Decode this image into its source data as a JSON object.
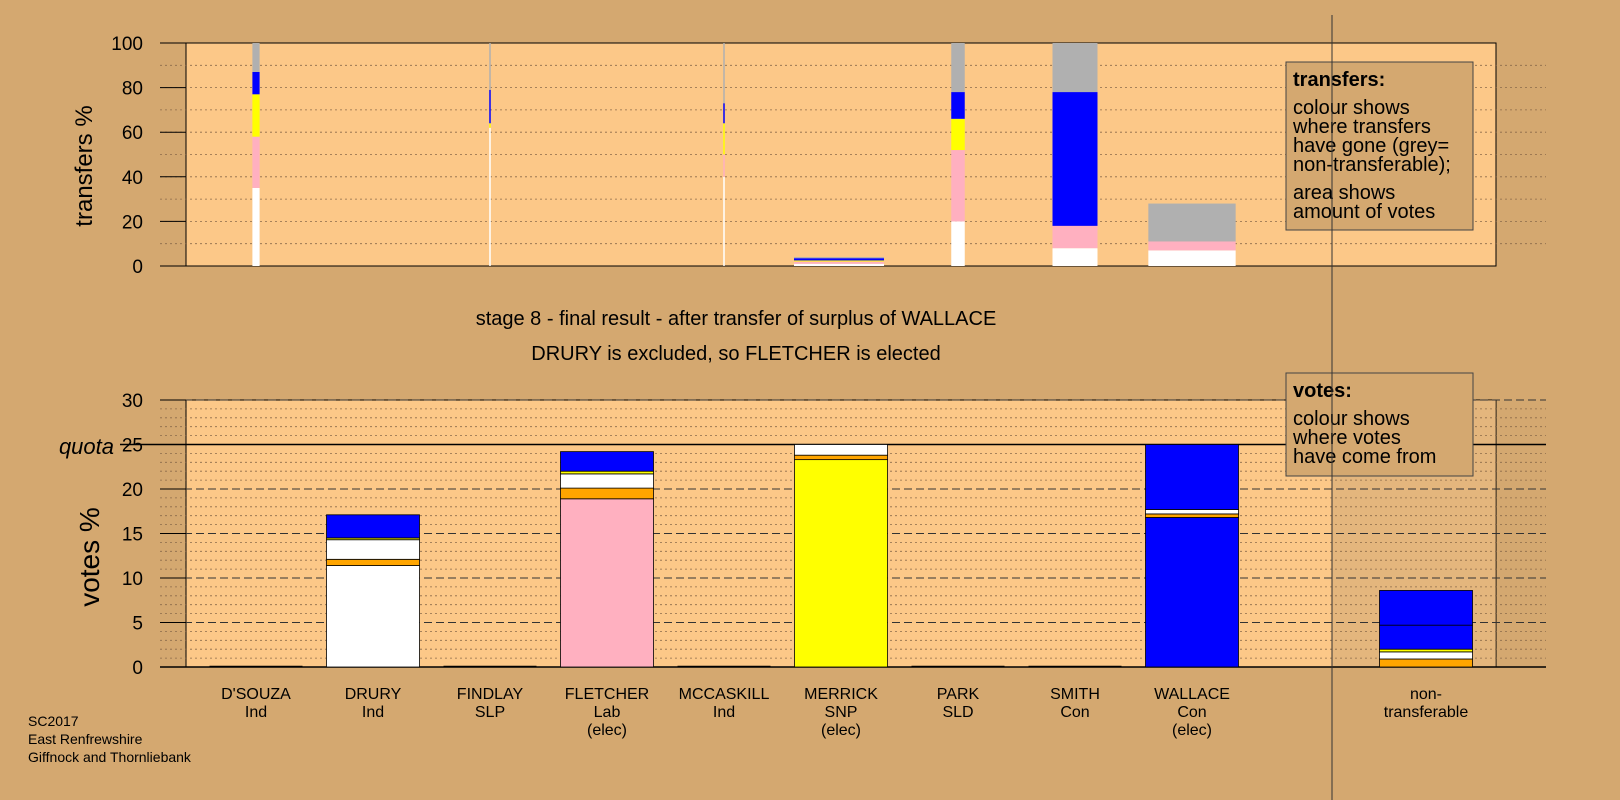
{
  "chart_data": [
    {
      "type": "bar",
      "id": "transfers",
      "ylabel": "transfers %",
      "ylim": [
        0,
        100
      ],
      "yticks": [
        0,
        20,
        40,
        60,
        80,
        100
      ],
      "note": "stacked bars, width proportional to amount of votes",
      "categories": [
        "D'SOUZA",
        "FINDLAY",
        "MCCASKILL",
        "MERRICK",
        "PARK",
        "SMITH",
        "WALLACE"
      ],
      "bars": [
        {
          "candidate": "D'SOUZA",
          "share_of_width": 0.08,
          "segments": [
            {
              "color": "#ffffff",
              "value": 35
            },
            {
              "color": "#ffb0c0",
              "value": 23
            },
            {
              "color": "#ffff00",
              "value": 19
            },
            {
              "color": "#0000ff",
              "value": 10
            },
            {
              "color": "#b0b0b0",
              "value": 13
            }
          ]
        },
        {
          "candidate": "FINDLAY",
          "share_of_width": 0.004,
          "segments": [
            {
              "color": "#ffffff",
              "value": 62
            },
            {
              "color": "#ffff00",
              "value": 2
            },
            {
              "color": "#0000ff",
              "value": 15
            },
            {
              "color": "#b0b0b0",
              "value": 21
            }
          ]
        },
        {
          "candidate": "MCCASKILL",
          "share_of_width": 0.008,
          "segments": [
            {
              "color": "#ffffff",
              "value": 40
            },
            {
              "color": "#ffb0c0",
              "value": 10
            },
            {
              "color": "#ffff00",
              "value": 14
            },
            {
              "color": "#0000ff",
              "value": 9
            },
            {
              "color": "#b0b0b0",
              "value": 27
            }
          ]
        },
        {
          "candidate": "MERRICK",
          "share_of_width": 1.0,
          "segments": [
            {
              "color": "#ffffff",
              "value": 1
            },
            {
              "color": "#ffb0c0",
              "value": 1
            },
            {
              "color": "#ffff00",
              "value": 0.5
            },
            {
              "color": "#0000ff",
              "value": 1
            },
            {
              "color": "#b0b0b0",
              "value": 0.5
            }
          ]
        },
        {
          "candidate": "PARK",
          "share_of_width": 0.15,
          "segments": [
            {
              "color": "#ffffff",
              "value": 20
            },
            {
              "color": "#ffb0c0",
              "value": 32
            },
            {
              "color": "#ffff00",
              "value": 14
            },
            {
              "color": "#0000ff",
              "value": 12
            },
            {
              "color": "#b0b0b0",
              "value": 22
            }
          ]
        },
        {
          "candidate": "SMITH",
          "share_of_width": 0.5,
          "segments": [
            {
              "color": "#ffffff",
              "value": 8
            },
            {
              "color": "#ffb0c0",
              "value": 10
            },
            {
              "color": "#0000ff",
              "value": 60
            },
            {
              "color": "#b0b0b0",
              "value": 22
            }
          ]
        },
        {
          "candidate": "WALLACE",
          "share_of_width": 0.97,
          "segments": [
            {
              "color": "#ffffff",
              "value": 7
            },
            {
              "color": "#ffb0c0",
              "value": 4
            },
            {
              "color": "#b0b0b0",
              "value": 17
            }
          ]
        }
      ],
      "legend": {
        "title": "transfers:",
        "lines1": [
          "colour shows",
          "where transfers",
          "have gone (grey=",
          "non-transferable);"
        ],
        "lines2": [
          "area shows",
          "amount of votes"
        ]
      }
    },
    {
      "type": "bar",
      "id": "votes",
      "ylabel": "votes %",
      "ylim": [
        0,
        30
      ],
      "yticks": [
        0,
        5,
        10,
        15,
        20,
        25,
        30
      ],
      "quota": 25,
      "quota_label": "quota",
      "categories": [
        "D'SOUZA",
        "DRURY",
        "FINDLAY",
        "FLETCHER",
        "MCCASKILL",
        "MERRICK",
        "PARK",
        "SMITH",
        "WALLACE",
        "non-transferable"
      ],
      "category_lines": [
        [
          "D'SOUZA",
          "Ind"
        ],
        [
          "DRURY",
          "Ind"
        ],
        [
          "FINDLAY",
          "SLP"
        ],
        [
          "FLETCHER",
          "Lab",
          "(elec)"
        ],
        [
          "MCCASKILL",
          "Ind"
        ],
        [
          "MERRICK",
          "SNP",
          "(elec)"
        ],
        [
          "PARK",
          "SLD"
        ],
        [
          "SMITH",
          "Con"
        ],
        [
          "WALLACE",
          "Con",
          "(elec)"
        ],
        [
          "non-",
          "transferable"
        ]
      ],
      "series": [
        {
          "candidate": "D'SOUZA",
          "segments": []
        },
        {
          "candidate": "DRURY",
          "segments": [
            {
              "color": "#ffffff",
              "value": 11.4
            },
            {
              "color": "#ffa500",
              "value": 0.7
            },
            {
              "color": "#ffffff",
              "value": 2.2
            },
            {
              "color": "#ffff00",
              "value": 0.2
            },
            {
              "color": "#0000ff",
              "value": 2.6
            }
          ]
        },
        {
          "candidate": "FINDLAY",
          "segments": []
        },
        {
          "candidate": "FLETCHER",
          "segments": [
            {
              "color": "#ffb0c0",
              "value": 18.9
            },
            {
              "color": "#ffa500",
              "value": 1.2
            },
            {
              "color": "#ffffff",
              "value": 1.6
            },
            {
              "color": "#ffff00",
              "value": 0.3
            },
            {
              "color": "#0000ff",
              "value": 2.2
            }
          ]
        },
        {
          "candidate": "MCCASKILL",
          "segments": []
        },
        {
          "candidate": "MERRICK",
          "segments": [
            {
              "color": "#ffff00",
              "value": 23.3
            },
            {
              "color": "#ffa500",
              "value": 0.5
            },
            {
              "color": "#ffffff",
              "value": 1.2
            }
          ]
        },
        {
          "candidate": "PARK",
          "segments": []
        },
        {
          "candidate": "SMITH",
          "segments": []
        },
        {
          "candidate": "WALLACE",
          "segments": [
            {
              "color": "#0000ff",
              "value": 16.8
            },
            {
              "color": "#ffa500",
              "value": 0.4
            },
            {
              "color": "#ffffff",
              "value": 0.5
            },
            {
              "color": "#0000ff",
              "value": 7.3
            }
          ]
        },
        {
          "candidate": "non-transferable",
          "segments": [
            {
              "color": "#ffa500",
              "value": 0.9
            },
            {
              "color": "#ffffff",
              "value": 0.8
            },
            {
              "color": "#ffff00",
              "value": 0.3
            },
            {
              "color": "#0000ff",
              "value": 2.7
            },
            {
              "color": "#0000ff",
              "value": 3.9
            }
          ]
        }
      ],
      "legend": {
        "title": "votes:",
        "lines": [
          "colour shows",
          "where votes",
          "have come from"
        ]
      }
    }
  ],
  "stage_title": "stage 8 - final result - after transfer of surplus of WALLACE",
  "stage_subtitle": "DRURY is excluded, so FLETCHER is elected",
  "footer": [
    "SC2017",
    "East Renfrewshire",
    "Giffnock and Thornliebank"
  ],
  "colors": {
    "background": "#d4a870",
    "plot_background": "#fcc888",
    "non_transferable_shade": "#c8a070"
  }
}
